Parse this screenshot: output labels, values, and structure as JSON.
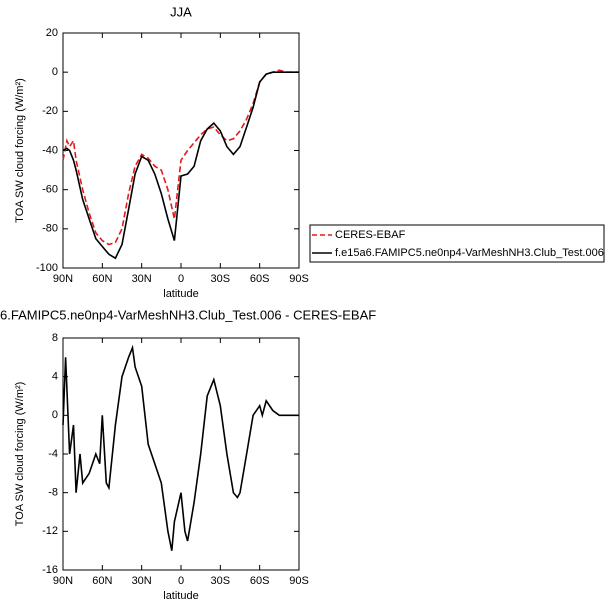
{
  "chart_data": [
    {
      "type": "line",
      "title": "JJA",
      "xlabel": "latitude",
      "ylabel": "TOA SW cloud forcing (W/m²)",
      "xlim": [
        90,
        -90
      ],
      "xticks": [
        {
          "value": 90,
          "label": "90N"
        },
        {
          "value": 60,
          "label": "60N"
        },
        {
          "value": 30,
          "label": "30N"
        },
        0,
        {
          "value": -30,
          "label": "30S"
        },
        {
          "value": -60,
          "label": "60S"
        },
        {
          "value": -90,
          "label": "90S"
        }
      ],
      "ylim": [
        -100,
        20
      ],
      "yticks": [
        -100,
        -80,
        -60,
        -40,
        -20,
        0,
        20
      ],
      "legend": "right",
      "x": [
        90,
        87,
        85,
        82,
        80,
        75,
        70,
        65,
        60,
        55,
        50,
        45,
        40,
        35,
        30,
        25,
        20,
        15,
        10,
        5,
        0,
        -5,
        -10,
        -15,
        -20,
        -25,
        -30,
        -35,
        -40,
        -45,
        -50,
        -55,
        -60,
        -65,
        -70,
        -75,
        -80,
        -85,
        -90
      ],
      "series": [
        {
          "name": "CERES-EBAF",
          "color": "#e41a1c",
          "dashed": true,
          "values": [
            -45,
            -35,
            -38,
            -35,
            -45,
            -60,
            -72,
            -82,
            -86,
            -88,
            -87,
            -80,
            -62,
            -48,
            -42,
            -44,
            -48,
            -50,
            -60,
            -75,
            -45,
            -40,
            -36,
            -32,
            -29,
            -28,
            -32,
            -35,
            -34,
            -30,
            -24,
            -16,
            -5,
            -1,
            0,
            1,
            0,
            0,
            0
          ]
        },
        {
          "name": "f.e15a6.FAMIPC5.ne0np4-VarMeshNH3.Club_Test.006",
          "color": "#000000",
          "dashed": false,
          "values": [
            -40,
            -39,
            -40,
            -45,
            -50,
            -65,
            -75,
            -85,
            -89,
            -93,
            -95,
            -88,
            -70,
            -52,
            -43,
            -45,
            -52,
            -62,
            -75,
            -86,
            -53,
            -52,
            -48,
            -35,
            -29,
            -26,
            -30,
            -38,
            -42,
            -38,
            -28,
            -18,
            -5,
            -1,
            0,
            0,
            0,
            0,
            0
          ]
        }
      ]
    },
    {
      "type": "line",
      "title": "6.FAMIPC5.ne0np4-VarMeshNH3.Club_Test.006 - CERES-EBAF",
      "xlabel": "latitude",
      "ylabel": "TOA SW cloud forcing (W/m²)",
      "xlim": [
        90,
        -90
      ],
      "xticks": [
        {
          "value": 90,
          "label": "90N"
        },
        {
          "value": 60,
          "label": "60N"
        },
        {
          "value": 30,
          "label": "30N"
        },
        0,
        {
          "value": -30,
          "label": "30S"
        },
        {
          "value": -60,
          "label": "60S"
        },
        {
          "value": -90,
          "label": "90S"
        }
      ],
      "ylim": [
        -16,
        8
      ],
      "yticks": [
        -16,
        -12,
        -8,
        -4,
        0,
        4,
        8
      ],
      "x": [
        90,
        88,
        85,
        82,
        80,
        77,
        75,
        70,
        65,
        62,
        60,
        57,
        55,
        50,
        45,
        40,
        37,
        35,
        30,
        25,
        20,
        15,
        10,
        7,
        5,
        0,
        -3,
        -5,
        -10,
        -15,
        -20,
        -25,
        -30,
        -35,
        -40,
        -43,
        -45,
        -50,
        -55,
        -60,
        -62,
        -65,
        -70,
        -75,
        -80,
        -90
      ],
      "series": [
        {
          "color": "#000000",
          "dashed": false,
          "values": [
            -1,
            6,
            -4,
            -1,
            -8,
            -4,
            -7,
            -6,
            -4,
            -5,
            0,
            -7,
            -7.5,
            -1,
            4,
            6,
            7,
            5,
            3,
            -3,
            -5,
            -7,
            -12,
            -14,
            -11,
            -8,
            -12,
            -13,
            -9,
            -4,
            2,
            3.7,
            1,
            -4,
            -8,
            -8.5,
            -8,
            -4,
            0,
            1,
            0,
            1.5,
            0.5,
            0,
            0,
            0
          ]
        }
      ]
    }
  ]
}
